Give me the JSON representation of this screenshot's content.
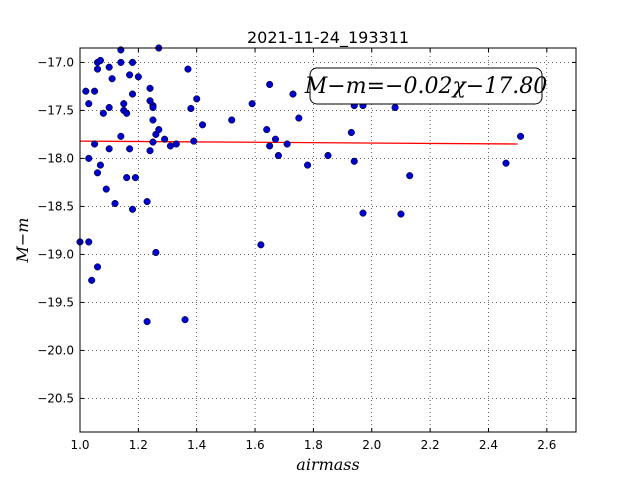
{
  "chart_data": {
    "type": "scatter",
    "title": "2021-11-24_193311",
    "xlabel": "airmass",
    "ylabel": "M−m",
    "xlim": [
      1.0,
      2.7
    ],
    "ylim": [
      -20.85,
      -16.85
    ],
    "x_ticks": [
      1.0,
      1.2,
      1.4,
      1.6,
      1.8,
      2.0,
      2.2,
      2.4,
      2.6
    ],
    "x_tick_labels": [
      "1.0",
      "1.2",
      "1.4",
      "1.6",
      "1.8",
      "2.0",
      "2.2",
      "2.4",
      "2.6"
    ],
    "y_ticks": [
      -17.0,
      -17.5,
      -18.0,
      -18.5,
      -19.0,
      -19.5,
      -20.0,
      -20.5
    ],
    "y_tick_labels": [
      "−17.0",
      "−17.5",
      "−18.0",
      "−18.5",
      "−19.0",
      "−19.5",
      "−20.0",
      "−20.5"
    ],
    "grid": true,
    "annotation": "M−m=−0.02χ−17.80",
    "point_color": "#0000cc",
    "fit_color": "#ff0000",
    "fit_line": {
      "slope": -0.02,
      "intercept": -17.8,
      "x_range": [
        1.0,
        2.5
      ]
    },
    "points": [
      [
        1.0,
        -18.87
      ],
      [
        1.02,
        -17.3
      ],
      [
        1.03,
        -17.43
      ],
      [
        1.03,
        -18.0
      ],
      [
        1.03,
        -18.87
      ],
      [
        1.04,
        -19.27
      ],
      [
        1.05,
        -17.85
      ],
      [
        1.05,
        -17.3
      ],
      [
        1.06,
        -17.07
      ],
      [
        1.06,
        -18.15
      ],
      [
        1.06,
        -19.13
      ],
      [
        1.06,
        -17.0
      ],
      [
        1.07,
        -16.98
      ],
      [
        1.07,
        -18.07
      ],
      [
        1.08,
        -17.53
      ],
      [
        1.09,
        -18.32
      ],
      [
        1.1,
        -17.05
      ],
      [
        1.1,
        -17.9
      ],
      [
        1.1,
        -17.47
      ],
      [
        1.11,
        -17.17
      ],
      [
        1.12,
        -18.47
      ],
      [
        1.14,
        -16.87
      ],
      [
        1.14,
        -17.77
      ],
      [
        1.14,
        -17.0
      ],
      [
        1.15,
        -17.5
      ],
      [
        1.15,
        -17.43
      ],
      [
        1.16,
        -17.53
      ],
      [
        1.16,
        -18.2
      ],
      [
        1.17,
        -17.13
      ],
      [
        1.17,
        -17.9
      ],
      [
        1.18,
        -17.33
      ],
      [
        1.18,
        -17.0
      ],
      [
        1.18,
        -18.53
      ],
      [
        1.19,
        -18.2
      ],
      [
        1.2,
        -17.15
      ],
      [
        1.23,
        -18.45
      ],
      [
        1.23,
        -19.7
      ],
      [
        1.24,
        -17.27
      ],
      [
        1.24,
        -17.4
      ],
      [
        1.24,
        -17.92
      ],
      [
        1.25,
        -17.45
      ],
      [
        1.25,
        -17.6
      ],
      [
        1.25,
        -17.47
      ],
      [
        1.25,
        -17.83
      ],
      [
        1.26,
        -18.98
      ],
      [
        1.26,
        -17.75
      ],
      [
        1.27,
        -16.85
      ],
      [
        1.27,
        -17.7
      ],
      [
        1.29,
        -17.8
      ],
      [
        1.31,
        -17.87
      ],
      [
        1.33,
        -17.85
      ],
      [
        1.36,
        -19.68
      ],
      [
        1.37,
        -17.07
      ],
      [
        1.38,
        -17.48
      ],
      [
        1.39,
        -17.82
      ],
      [
        1.4,
        -17.38
      ],
      [
        1.42,
        -17.65
      ],
      [
        1.52,
        -17.6
      ],
      [
        1.59,
        -17.43
      ],
      [
        1.62,
        -18.9
      ],
      [
        1.64,
        -17.7
      ],
      [
        1.65,
        -17.23
      ],
      [
        1.65,
        -17.87
      ],
      [
        1.67,
        -17.8
      ],
      [
        1.68,
        -17.97
      ],
      [
        1.71,
        -17.85
      ],
      [
        1.73,
        -17.33
      ],
      [
        1.75,
        -17.58
      ],
      [
        1.78,
        -18.07
      ],
      [
        1.85,
        -17.97
      ],
      [
        1.93,
        -17.73
      ],
      [
        1.94,
        -18.03
      ],
      [
        1.94,
        -17.45
      ],
      [
        1.97,
        -17.45
      ],
      [
        1.97,
        -18.57
      ],
      [
        2.08,
        -17.47
      ],
      [
        2.1,
        -18.58
      ],
      [
        2.13,
        -18.18
      ],
      [
        2.46,
        -18.05
      ],
      [
        2.51,
        -17.77
      ]
    ]
  }
}
